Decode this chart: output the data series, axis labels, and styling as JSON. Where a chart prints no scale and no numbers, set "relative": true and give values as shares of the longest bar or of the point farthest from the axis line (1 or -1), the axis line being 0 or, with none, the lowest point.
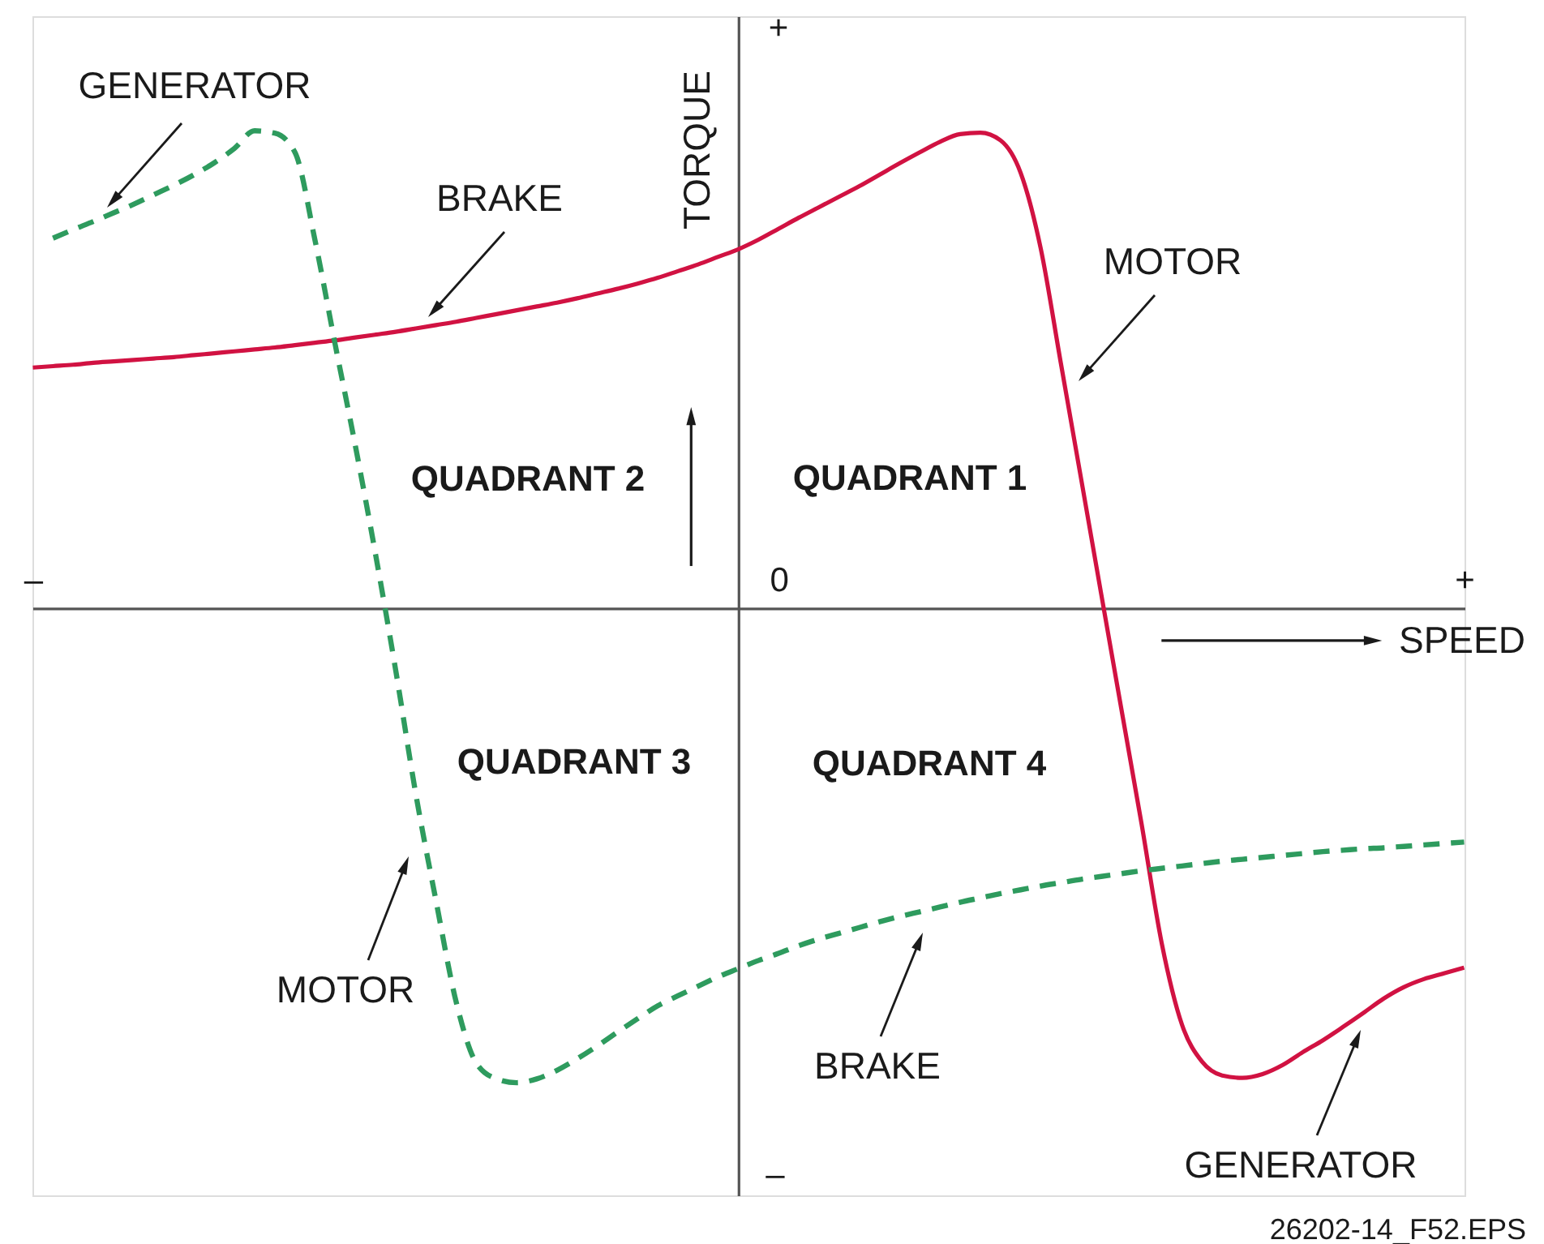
{
  "chart_data": {
    "type": "line",
    "relative": true,
    "xlabel": "SPEED",
    "ylabel": "TORQUE",
    "categories": [
      "–",
      null,
      null,
      null,
      null,
      null,
      null,
      null,
      null,
      null,
      null,
      null,
      null,
      null,
      null,
      null,
      null,
      null,
      null,
      null,
      null,
      null,
      null,
      null,
      null,
      null,
      null,
      null,
      null,
      null,
      null,
      null,
      null,
      null,
      null,
      null,
      null,
      "0",
      null,
      null,
      null,
      null,
      null,
      null,
      null,
      null,
      null,
      null,
      null,
      null,
      null,
      null,
      null,
      null,
      null,
      null,
      null,
      null,
      null,
      null,
      null,
      null,
      null,
      null,
      null,
      null,
      null,
      null,
      null,
      null,
      null,
      "+"
    ],
    "series": [
      {
        "color": "#d11242",
        "line_style": "solid",
        "values": [
          0.504,
          0.507,
          0.51,
          0.514,
          0.517,
          0.52,
          0.523,
          0.526,
          0.53,
          0.534,
          0.538,
          0.542,
          0.546,
          0.551,
          0.556,
          0.561,
          0.567,
          0.573,
          0.579,
          0.586,
          0.593,
          0.6,
          0.608,
          0.616,
          0.624,
          0.632,
          0.64,
          0.649,
          0.659,
          0.669,
          0.68,
          0.692,
          0.706,
          0.72,
          0.736,
          0.752,
          0.772,
          0.795,
          0.818,
          0.84,
          0.862,
          0.884,
          0.908,
          0.932,
          0.955,
          0.977,
          0.993,
          0.996,
          0.98,
          0.912,
          0.753,
          0.512,
          0.271,
          0.029,
          -0.212,
          -0.452,
          -0.702,
          -0.872,
          -0.95,
          -0.979,
          -0.984,
          -0.976,
          -0.957,
          -0.93,
          -0.905,
          -0.877,
          -0.848,
          -0.818,
          -0.794,
          -0.777,
          -0.765,
          -0.753
        ]
      },
      {
        "color": "#2e9b5e",
        "line_style": "dashed",
        "values": [
          null,
          0.775,
          0.793,
          0.81,
          0.828,
          0.846,
          0.866,
          0.886,
          0.908,
          0.933,
          0.963,
          1.0,
          0.995,
          0.955,
          0.77,
          0.552,
          0.34,
          0.113,
          -0.13,
          -0.39,
          -0.613,
          -0.825,
          -0.953,
          -0.986,
          -0.994,
          -0.986,
          -0.968,
          -0.944,
          -0.917,
          -0.888,
          -0.86,
          -0.833,
          -0.812,
          -0.792,
          -0.772,
          -0.755,
          -0.738,
          -0.723,
          -0.707,
          -0.693,
          -0.681,
          -0.669,
          -0.657,
          -0.646,
          -0.636,
          -0.626,
          -0.616,
          -0.607,
          -0.598,
          -0.59,
          -0.582,
          -0.575,
          -0.568,
          -0.562,
          -0.556,
          -0.55,
          -0.545,
          -0.54,
          -0.535,
          -0.53,
          -0.526,
          -0.522,
          -0.518,
          -0.514,
          -0.51,
          -0.507,
          -0.504,
          -0.502,
          -0.499,
          -0.496,
          -0.493,
          -0.49
        ]
      }
    ],
    "annotations": [
      "GENERATOR",
      "BRAKE",
      "MOTOR",
      "QUADRANT 2",
      "QUADRANT 1",
      "QUADRANT 3",
      "QUADRANT 4",
      "MOTOR",
      "BRAKE",
      "GENERATOR",
      "+",
      "–",
      "26202-14_F52.EPS"
    ]
  }
}
